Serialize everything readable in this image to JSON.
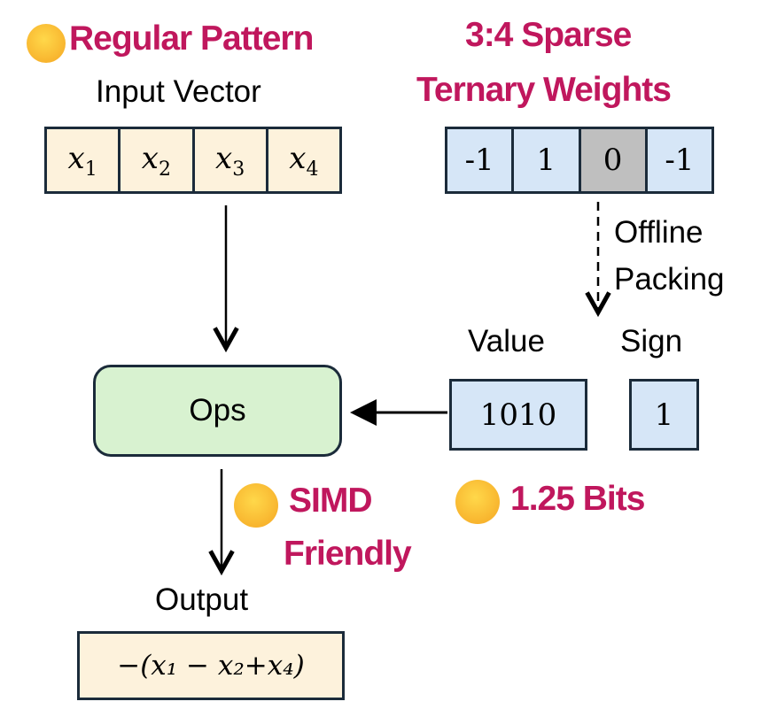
{
  "left_heading": "Regular Pattern",
  "right_heading_line1": "3:4 Sparse",
  "right_heading_line2": "Ternary Weights",
  "input_label": "Input Vector",
  "inputs": [
    "x",
    "x",
    "x",
    "x"
  ],
  "input_subs": [
    "1",
    "2",
    "3",
    "4"
  ],
  "weights": [
    "-1",
    "1",
    "0",
    "-1"
  ],
  "packing_line1": "Offline",
  "packing_line2": "Packing",
  "value_label": "Value",
  "sign_label": "Sign",
  "value_bits": "1010",
  "sign_bits": "1",
  "ops_label": "Ops",
  "simd_line1": "SIMD",
  "simd_line2": "Friendly",
  "bits_label": "1.25 Bits",
  "output_label": "Output",
  "output_expr": "−(x₁ − x₂+x₄)",
  "colors": {
    "accent": "#c0175d",
    "input_fill": "#fdf2dc",
    "weight_fill": "#d6e6f7",
    "zero_fill": "#bfbfbf",
    "ops_fill": "#d8f2d0",
    "border": "#1b2b3a"
  },
  "icons": [
    "smiling-face-emoji"
  ]
}
